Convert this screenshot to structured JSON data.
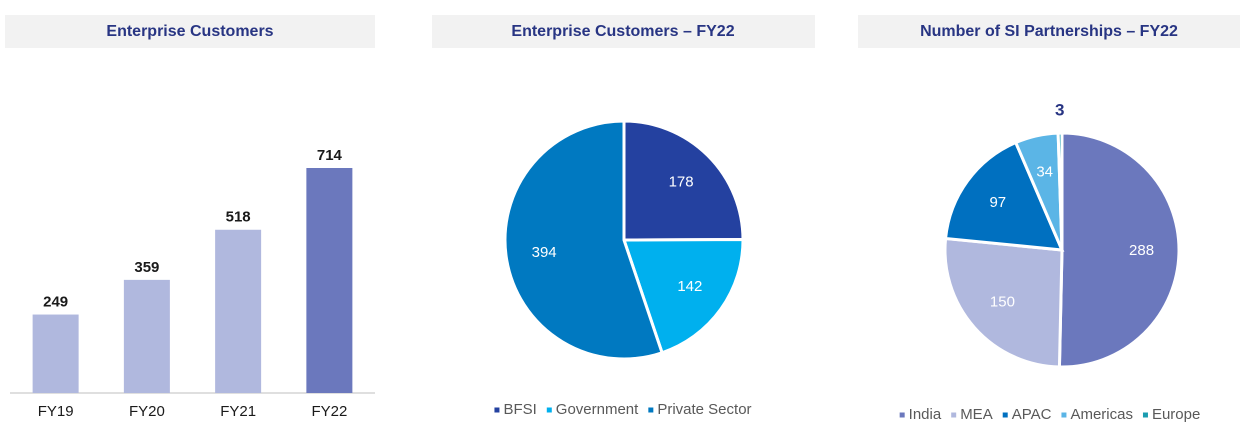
{
  "chart_data": [
    {
      "type": "bar",
      "title": "Enterprise Customers",
      "categories": [
        "FY19",
        "FY20",
        "FY21",
        "FY22"
      ],
      "values": [
        249,
        359,
        518,
        714
      ],
      "colors": [
        "#b0b8de",
        "#b0b8de",
        "#b0b8de",
        "#6b78bd"
      ]
    },
    {
      "type": "pie",
      "title": "Enterprise Customers – FY22",
      "categories": [
        "BFSI",
        "Government",
        "Private Sector"
      ],
      "values": [
        178,
        142,
        394
      ],
      "colors": [
        "#2441a0",
        "#00b0ee",
        "#0079c1"
      ]
    },
    {
      "type": "pie",
      "title": "Number of SI Partnerships – FY22",
      "categories": [
        "India",
        "MEA",
        "APAC",
        "Americas",
        "Europe"
      ],
      "values": [
        288,
        150,
        97,
        34,
        3
      ],
      "colors": [
        "#6b78bd",
        "#b0b8de",
        "#0070c0",
        "#5bb5e6",
        "#1a9cb0"
      ]
    }
  ]
}
